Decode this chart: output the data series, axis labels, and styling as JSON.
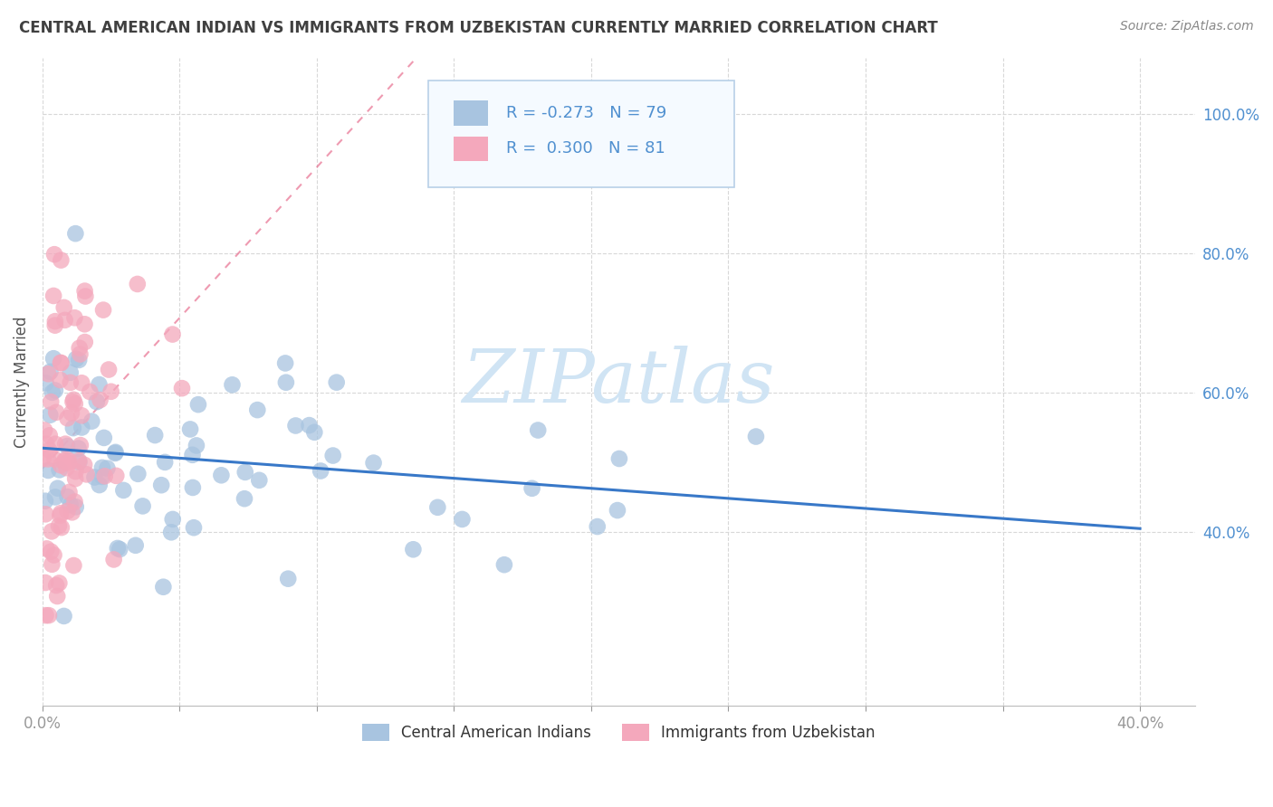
{
  "title": "CENTRAL AMERICAN INDIAN VS IMMIGRANTS FROM UZBEKISTAN CURRENTLY MARRIED CORRELATION CHART",
  "source": "Source: ZipAtlas.com",
  "ylabel": "Currently Married",
  "blue_label": "Central American Indians",
  "pink_label": "Immigrants from Uzbekistan",
  "blue_R": -0.273,
  "blue_N": 79,
  "pink_R": 0.3,
  "pink_N": 81,
  "blue_color": "#a8c4e0",
  "pink_color": "#f4a8bc",
  "blue_line_color": "#3878c8",
  "pink_line_color": "#e87090",
  "watermark_color": "#d0e4f4",
  "background_color": "#ffffff",
  "grid_color": "#d8d8d8",
  "title_color": "#404040",
  "axis_tick_color": "#5090d0",
  "legend_bg": "#f5faff",
  "legend_border": "#b8d0e8",
  "xlim": [
    0.0,
    0.42
  ],
  "ylim": [
    0.15,
    1.08
  ],
  "x_ticks": [
    0.0,
    0.05,
    0.1,
    0.15,
    0.2,
    0.25,
    0.3,
    0.35,
    0.4
  ],
  "y_ticks": [
    0.2,
    0.4,
    0.6,
    0.8,
    1.0
  ],
  "blue_seed": 42,
  "pink_seed": 123
}
